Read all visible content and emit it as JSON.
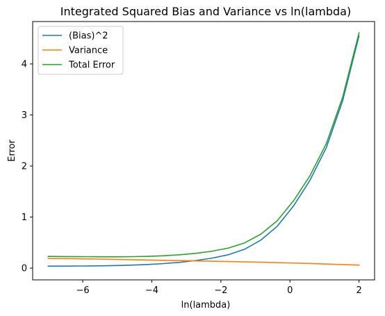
{
  "chart_data": {
    "type": "line",
    "title": "Integrated Squared Bias and Variance vs ln(lambda)",
    "xlabel": "ln(lambda)",
    "ylabel": "Error",
    "xlim": [
      -7.45,
      2.45
    ],
    "ylim": [
      -0.23,
      4.83
    ],
    "xticks": [
      -6,
      -4,
      -2,
      0,
      2
    ],
    "xtick_labels": [
      "−6",
      "−4",
      "−2",
      "0",
      "2"
    ],
    "yticks": [
      0,
      1,
      2,
      3,
      4
    ],
    "ytick_labels": [
      "0",
      "1",
      "2",
      "3",
      "4"
    ],
    "grid": false,
    "legend_position": "top-left",
    "x": [
      -7.0,
      -6.526,
      -6.053,
      -5.579,
      -5.105,
      -4.632,
      -4.158,
      -3.684,
      -3.211,
      -2.737,
      -2.263,
      -1.789,
      -1.316,
      -0.842,
      -0.368,
      0.105,
      0.579,
      1.053,
      1.526,
      2.0
    ],
    "series": [
      {
        "name": "(Bias)^2",
        "color": "#1f77b4",
        "values": [
          0.04,
          0.04,
          0.042,
          0.045,
          0.05,
          0.058,
          0.07,
          0.088,
          0.113,
          0.148,
          0.195,
          0.262,
          0.37,
          0.55,
          0.82,
          1.22,
          1.72,
          2.36,
          3.28,
          4.55
        ]
      },
      {
        "name": "Variance",
        "color": "#ff7f0e",
        "values": [
          0.19,
          0.187,
          0.183,
          0.178,
          0.172,
          0.166,
          0.16,
          0.154,
          0.148,
          0.142,
          0.136,
          0.13,
          0.123,
          0.116,
          0.108,
          0.1,
          0.09,
          0.08,
          0.07,
          0.06
        ]
      },
      {
        "name": "Total Error",
        "color": "#2ca02c",
        "values": [
          0.23,
          0.227,
          0.225,
          0.223,
          0.222,
          0.224,
          0.23,
          0.242,
          0.261,
          0.29,
          0.331,
          0.392,
          0.493,
          0.666,
          0.928,
          1.32,
          1.81,
          2.44,
          3.35,
          4.61
        ]
      }
    ]
  }
}
